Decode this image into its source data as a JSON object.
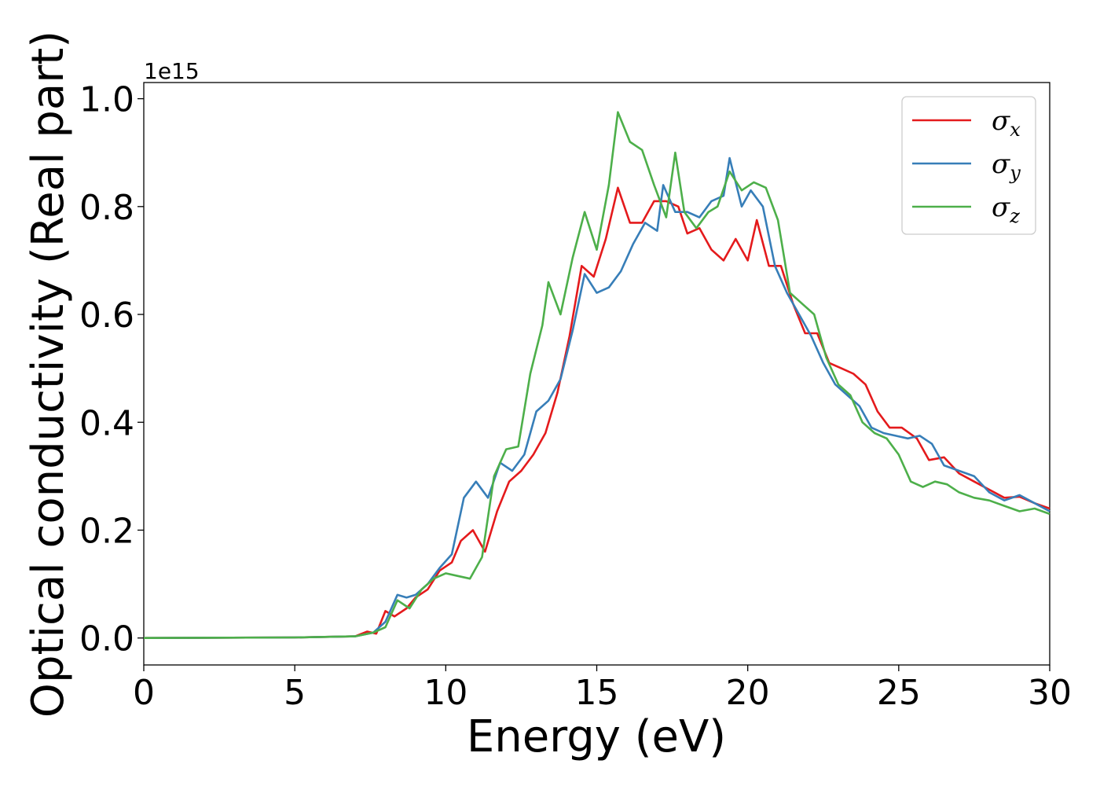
{
  "chart_data": {
    "type": "line",
    "title": "",
    "xlabel": "Energy (eV)",
    "ylabel": "Optical conductivity (Real part)",
    "y_offset_label": "1e15",
    "xlim": [
      0,
      30
    ],
    "ylim": [
      -0.05,
      1.03
    ],
    "x_ticks": [
      0,
      5,
      10,
      15,
      20,
      25,
      30
    ],
    "x_tick_labels": [
      "0",
      "5",
      "10",
      "15",
      "20",
      "25",
      "30"
    ],
    "y_ticks": [
      0.0,
      0.2,
      0.4,
      0.6,
      0.8,
      1.0
    ],
    "y_tick_labels": [
      "0.0",
      "0.2",
      "0.4",
      "0.6",
      "0.8",
      "1.0"
    ],
    "grid": false,
    "legend_position": "top-right",
    "series": [
      {
        "name": "σx",
        "legend_base": "σ",
        "legend_sub": "x",
        "color": "#e41a1c",
        "points": [
          [
            0,
            0
          ],
          [
            5,
            0.001
          ],
          [
            7,
            0.003
          ],
          [
            7.4,
            0.012
          ],
          [
            7.7,
            0.008
          ],
          [
            8,
            0.05
          ],
          [
            8.3,
            0.04
          ],
          [
            8.7,
            0.055
          ],
          [
            9,
            0.075
          ],
          [
            9.4,
            0.09
          ],
          [
            9.8,
            0.125
          ],
          [
            10.2,
            0.14
          ],
          [
            10.5,
            0.18
          ],
          [
            10.9,
            0.2
          ],
          [
            11.3,
            0.16
          ],
          [
            11.7,
            0.235
          ],
          [
            12.1,
            0.29
          ],
          [
            12.5,
            0.31
          ],
          [
            12.9,
            0.34
          ],
          [
            13.3,
            0.38
          ],
          [
            13.7,
            0.455
          ],
          [
            14.1,
            0.56
          ],
          [
            14.5,
            0.69
          ],
          [
            14.9,
            0.67
          ],
          [
            15.3,
            0.74
          ],
          [
            15.7,
            0.835
          ],
          [
            16.1,
            0.77
          ],
          [
            16.5,
            0.77
          ],
          [
            16.9,
            0.81
          ],
          [
            17.3,
            0.81
          ],
          [
            17.7,
            0.8
          ],
          [
            18,
            0.75
          ],
          [
            18.4,
            0.76
          ],
          [
            18.8,
            0.72
          ],
          [
            19.2,
            0.7
          ],
          [
            19.6,
            0.74
          ],
          [
            20,
            0.7
          ],
          [
            20.3,
            0.775
          ],
          [
            20.7,
            0.69
          ],
          [
            21.1,
            0.69
          ],
          [
            21.5,
            0.62
          ],
          [
            21.9,
            0.565
          ],
          [
            22.3,
            0.565
          ],
          [
            22.7,
            0.51
          ],
          [
            23.1,
            0.5
          ],
          [
            23.5,
            0.49
          ],
          [
            23.9,
            0.47
          ],
          [
            24.3,
            0.42
          ],
          [
            24.7,
            0.39
          ],
          [
            25.1,
            0.39
          ],
          [
            25.6,
            0.37
          ],
          [
            26,
            0.33
          ],
          [
            26.5,
            0.335
          ],
          [
            27,
            0.305
          ],
          [
            27.5,
            0.29
          ],
          [
            28,
            0.275
          ],
          [
            28.5,
            0.26
          ],
          [
            29,
            0.262
          ],
          [
            29.5,
            0.25
          ],
          [
            30,
            0.24
          ]
        ]
      },
      {
        "name": "σy",
        "legend_base": "σ",
        "legend_sub": "y",
        "color": "#377eb8",
        "points": [
          [
            0,
            0
          ],
          [
            5,
            0.001
          ],
          [
            7,
            0.003
          ],
          [
            7.6,
            0.01
          ],
          [
            8,
            0.03
          ],
          [
            8.4,
            0.08
          ],
          [
            8.7,
            0.075
          ],
          [
            9,
            0.08
          ],
          [
            9.4,
            0.1
          ],
          [
            9.8,
            0.13
          ],
          [
            10.2,
            0.155
          ],
          [
            10.6,
            0.26
          ],
          [
            11,
            0.29
          ],
          [
            11.4,
            0.26
          ],
          [
            11.8,
            0.325
          ],
          [
            12.2,
            0.31
          ],
          [
            12.6,
            0.34
          ],
          [
            13,
            0.42
          ],
          [
            13.4,
            0.44
          ],
          [
            13.8,
            0.48
          ],
          [
            14.2,
            0.57
          ],
          [
            14.6,
            0.675
          ],
          [
            15,
            0.64
          ],
          [
            15.4,
            0.65
          ],
          [
            15.8,
            0.68
          ],
          [
            16.2,
            0.73
          ],
          [
            16.6,
            0.77
          ],
          [
            17,
            0.755
          ],
          [
            17.2,
            0.84
          ],
          [
            17.6,
            0.79
          ],
          [
            18,
            0.79
          ],
          [
            18.4,
            0.78
          ],
          [
            18.8,
            0.81
          ],
          [
            19.2,
            0.82
          ],
          [
            19.4,
            0.89
          ],
          [
            19.8,
            0.8
          ],
          [
            20.1,
            0.83
          ],
          [
            20.5,
            0.8
          ],
          [
            20.9,
            0.69
          ],
          [
            21.3,
            0.64
          ],
          [
            21.7,
            0.6
          ],
          [
            22.1,
            0.56
          ],
          [
            22.5,
            0.51
          ],
          [
            22.9,
            0.47
          ],
          [
            23.3,
            0.45
          ],
          [
            23.7,
            0.43
          ],
          [
            24.1,
            0.39
          ],
          [
            24.5,
            0.38
          ],
          [
            24.9,
            0.375
          ],
          [
            25.3,
            0.37
          ],
          [
            25.7,
            0.375
          ],
          [
            26.1,
            0.36
          ],
          [
            26.5,
            0.32
          ],
          [
            27,
            0.31
          ],
          [
            27.5,
            0.3
          ],
          [
            28,
            0.27
          ],
          [
            28.5,
            0.255
          ],
          [
            29,
            0.265
          ],
          [
            29.5,
            0.25
          ],
          [
            30,
            0.235
          ]
        ]
      },
      {
        "name": "σz",
        "legend_base": "σ",
        "legend_sub": "z",
        "color": "#4daf4a",
        "points": [
          [
            0,
            0
          ],
          [
            5,
            0.001
          ],
          [
            7,
            0.003
          ],
          [
            7.6,
            0.01
          ],
          [
            8,
            0.02
          ],
          [
            8.4,
            0.07
          ],
          [
            8.8,
            0.055
          ],
          [
            9.2,
            0.09
          ],
          [
            9.6,
            0.11
          ],
          [
            10,
            0.12
          ],
          [
            10.4,
            0.115
          ],
          [
            10.8,
            0.11
          ],
          [
            11.2,
            0.15
          ],
          [
            11.6,
            0.3
          ],
          [
            12,
            0.35
          ],
          [
            12.4,
            0.355
          ],
          [
            12.8,
            0.49
          ],
          [
            13.2,
            0.58
          ],
          [
            13.4,
            0.66
          ],
          [
            13.8,
            0.6
          ],
          [
            14.2,
            0.705
          ],
          [
            14.6,
            0.79
          ],
          [
            15,
            0.72
          ],
          [
            15.4,
            0.84
          ],
          [
            15.7,
            0.975
          ],
          [
            16.1,
            0.92
          ],
          [
            16.5,
            0.905
          ],
          [
            16.9,
            0.84
          ],
          [
            17.3,
            0.78
          ],
          [
            17.6,
            0.9
          ],
          [
            17.9,
            0.79
          ],
          [
            18.3,
            0.76
          ],
          [
            18.7,
            0.79
          ],
          [
            19,
            0.8
          ],
          [
            19.4,
            0.865
          ],
          [
            19.8,
            0.83
          ],
          [
            20.2,
            0.845
          ],
          [
            20.6,
            0.835
          ],
          [
            21,
            0.775
          ],
          [
            21.4,
            0.64
          ],
          [
            21.8,
            0.62
          ],
          [
            22.2,
            0.6
          ],
          [
            22.6,
            0.52
          ],
          [
            23,
            0.47
          ],
          [
            23.4,
            0.45
          ],
          [
            23.8,
            0.4
          ],
          [
            24.2,
            0.38
          ],
          [
            24.6,
            0.37
          ],
          [
            25,
            0.34
          ],
          [
            25.4,
            0.29
          ],
          [
            25.8,
            0.28
          ],
          [
            26.2,
            0.29
          ],
          [
            26.6,
            0.285
          ],
          [
            27,
            0.27
          ],
          [
            27.5,
            0.26
          ],
          [
            28,
            0.255
          ],
          [
            28.5,
            0.245
          ],
          [
            29,
            0.235
          ],
          [
            29.5,
            0.24
          ],
          [
            30,
            0.23
          ]
        ]
      }
    ]
  }
}
